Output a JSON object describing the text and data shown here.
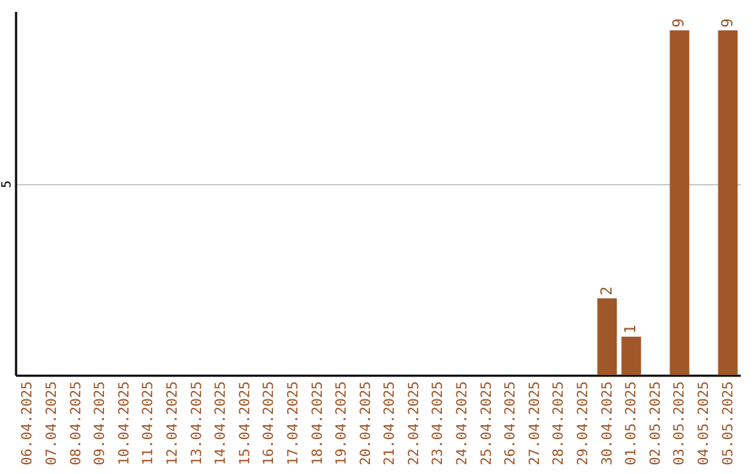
{
  "chart_data": {
    "type": "bar",
    "categories": [
      "06.04.2025",
      "07.04.2025",
      "08.04.2025",
      "09.04.2025",
      "10.04.2025",
      "11.04.2025",
      "12.04.2025",
      "13.04.2025",
      "14.04.2025",
      "15.04.2025",
      "16.04.2025",
      "17.04.2025",
      "18.04.2025",
      "19.04.2025",
      "20.04.2025",
      "21.04.2025",
      "22.04.2025",
      "23.04.2025",
      "24.04.2025",
      "25.04.2025",
      "26.04.2025",
      "27.04.2025",
      "28.04.2025",
      "29.04.2025",
      "30.04.2025",
      "01.05.2025",
      "02.05.2025",
      "03.05.2025",
      "04.05.2025",
      "05.05.2025"
    ],
    "values": [
      null,
      null,
      null,
      null,
      null,
      null,
      null,
      null,
      null,
      null,
      null,
      null,
      null,
      null,
      null,
      null,
      null,
      null,
      null,
      null,
      null,
      null,
      null,
      null,
      2,
      1,
      null,
      9,
      null,
      9
    ],
    "value_labels": [
      null,
      null,
      null,
      null,
      null,
      null,
      null,
      null,
      null,
      null,
      null,
      null,
      null,
      null,
      null,
      null,
      null,
      null,
      null,
      null,
      null,
      null,
      null,
      null,
      "2",
      "1",
      null,
      "9",
      null,
      "9"
    ],
    "color": "#a0572a",
    "ylim": [
      0,
      9.5
    ],
    "yticks": [
      5
    ],
    "grid": "y"
  }
}
